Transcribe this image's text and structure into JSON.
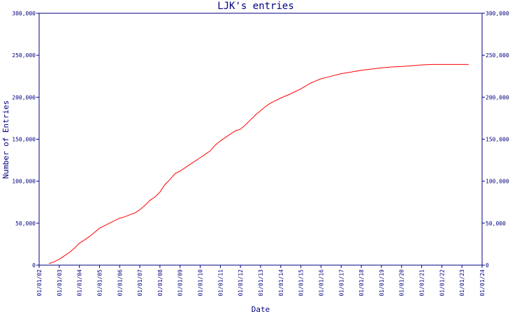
{
  "chart_data": {
    "type": "line",
    "title": "LJK's entries",
    "xlabel": "Date",
    "ylabel": "Number of Entries",
    "x_ticks": [
      "01/01/02",
      "01/01/03",
      "01/01/04",
      "01/01/05",
      "01/01/06",
      "01/01/07",
      "01/01/08",
      "01/01/09",
      "01/01/10",
      "01/01/11",
      "01/01/12",
      "01/01/13",
      "01/01/14",
      "01/01/15",
      "01/01/16",
      "01/01/17",
      "01/01/18",
      "01/01/19",
      "01/01/20",
      "01/01/21",
      "01/01/22",
      "01/01/23",
      "01/01/24"
    ],
    "y_ticks": [
      "0",
      "50,000",
      "100,000",
      "150,000",
      "200,000",
      "250,000",
      "300,000"
    ],
    "xlim": [
      "2002-01-01",
      "2024-01-01"
    ],
    "ylim": [
      0,
      300000
    ],
    "grid": false,
    "line_color": "#ff0000",
    "axis_color": "#000080",
    "series": [
      {
        "x": [
          "2002-07-01",
          "2002-10-01",
          "2003-01-01",
          "2003-04-01",
          "2003-07-01",
          "2003-10-01",
          "2004-01-01",
          "2004-04-01",
          "2004-07-01",
          "2004-10-01",
          "2005-01-01",
          "2005-04-01",
          "2005-07-01",
          "2005-10-01",
          "2006-01-01",
          "2006-04-01",
          "2006-07-01",
          "2006-10-01",
          "2007-01-01",
          "2007-04-01",
          "2007-07-01",
          "2007-10-01",
          "2008-01-01",
          "2008-04-01",
          "2008-07-01",
          "2008-10-01",
          "2009-01-01",
          "2009-04-01",
          "2009-07-01",
          "2009-10-01",
          "2010-01-01",
          "2010-04-01",
          "2010-07-01",
          "2010-10-01",
          "2011-01-01",
          "2011-04-01",
          "2011-07-01",
          "2011-10-01",
          "2012-01-01",
          "2012-04-01",
          "2012-07-01",
          "2012-10-01",
          "2013-01-01",
          "2013-04-01",
          "2013-07-01",
          "2013-10-01",
          "2014-01-01",
          "2014-07-01",
          "2015-01-01",
          "2015-07-01",
          "2016-01-01",
          "2016-07-01",
          "2017-01-01",
          "2017-07-01",
          "2018-01-01",
          "2018-07-01",
          "2019-01-01",
          "2019-07-01",
          "2020-01-01",
          "2020-07-01",
          "2021-01-01",
          "2021-07-01",
          "2022-01-01",
          "2022-07-01",
          "2023-01-01",
          "2023-05-01"
        ],
        "y": [
          2000,
          4000,
          7000,
          11000,
          15000,
          20000,
          26000,
          30000,
          34000,
          39000,
          44000,
          47000,
          50000,
          53000,
          56000,
          57500,
          60000,
          62000,
          66000,
          71000,
          77000,
          81000,
          87000,
          96000,
          102000,
          109000,
          112000,
          116000,
          120000,
          124000,
          128000,
          132000,
          136000,
          143000,
          148000,
          152000,
          156000,
          160000,
          162000,
          167000,
          173000,
          179000,
          184000,
          189000,
          193000,
          196000,
          199000,
          204000,
          210000,
          217000,
          222000,
          225000,
          228000,
          230000,
          232000,
          233500,
          235000,
          236000,
          236500,
          237500,
          238500,
          239000,
          239000,
          239000,
          239000,
          239000
        ]
      }
    ]
  }
}
